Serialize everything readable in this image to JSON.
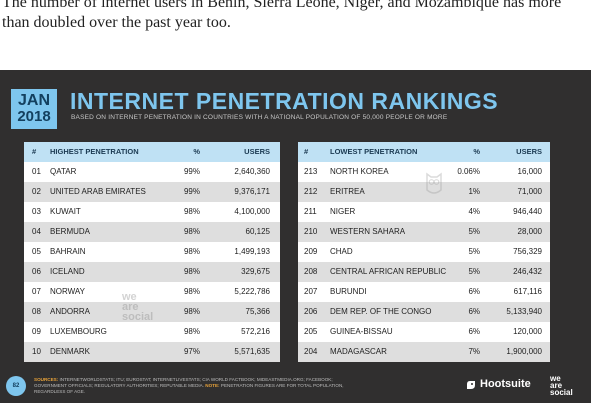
{
  "intro_text": "The number of internet users in Benin, Sierra Leone, Niger, and Mozambique has more than doubled over the past year too.",
  "slide": {
    "month": "JAN",
    "year": "2018",
    "title": "INTERNET PENETRATION RANKINGS",
    "subtitle": "BASED ON INTERNET PENETRATION IN COUNTRIES WITH A NATIONAL POPULATION OF 50,000 PEOPLE OR MORE",
    "page_number": "82",
    "watermark_left": [
      "we",
      "are",
      "social"
    ],
    "sources_label": "SOURCES:",
    "sources_text": "INTERNETWORLDSTATS; ITU; EUROSTAT; INTERNETLIVESTATS; CIA WORLD FACTBOOK; MIDEASTMEDIA.ORG; FACEBOOK; GOVERNMENT OFFICIALS; REGULATORY AUTHORITIES; REPUTABLE MEDIA.",
    "note_label": "NOTE:",
    "note_text": "PENETRATION FIGURES ARE FOR TOTAL POPULATION, REGARDLESS OF AGE.",
    "brand": "Hootsuite",
    "was": [
      "we",
      "are",
      "social"
    ],
    "colors": {
      "accent": "#7ec6ee",
      "background": "#302f2f",
      "header": "#bfe1f4"
    }
  },
  "left_table": {
    "headers": {
      "num": "#",
      "name": "HIGHEST PENETRATION",
      "pct": "%",
      "users": "USERS"
    },
    "rows": [
      {
        "num": "01",
        "name": "QATAR",
        "pct": "99%",
        "users": "2,640,360"
      },
      {
        "num": "02",
        "name": "UNITED ARAB EMIRATES",
        "pct": "99%",
        "users": "9,376,171"
      },
      {
        "num": "03",
        "name": "KUWAIT",
        "pct": "98%",
        "users": "4,100,000"
      },
      {
        "num": "04",
        "name": "BERMUDA",
        "pct": "98%",
        "users": "60,125"
      },
      {
        "num": "05",
        "name": "BAHRAIN",
        "pct": "98%",
        "users": "1,499,193"
      },
      {
        "num": "06",
        "name": "ICELAND",
        "pct": "98%",
        "users": "329,675"
      },
      {
        "num": "07",
        "name": "NORWAY",
        "pct": "98%",
        "users": "5,222,786"
      },
      {
        "num": "08",
        "name": "ANDORRA",
        "pct": "98%",
        "users": "75,366"
      },
      {
        "num": "09",
        "name": "LUXEMBOURG",
        "pct": "98%",
        "users": "572,216"
      },
      {
        "num": "10",
        "name": "DENMARK",
        "pct": "97%",
        "users": "5,571,635"
      }
    ]
  },
  "right_table": {
    "headers": {
      "num": "#",
      "name": "LOWEST PENETRATION",
      "pct": "%",
      "users": "USERS"
    },
    "rows": [
      {
        "num": "213",
        "name": "NORTH KOREA",
        "pct": "0.06%",
        "users": "16,000"
      },
      {
        "num": "212",
        "name": "ERITREA",
        "pct": "1%",
        "users": "71,000"
      },
      {
        "num": "211",
        "name": "NIGER",
        "pct": "4%",
        "users": "946,440"
      },
      {
        "num": "210",
        "name": "WESTERN SAHARA",
        "pct": "5%",
        "users": "28,000"
      },
      {
        "num": "209",
        "name": "CHAD",
        "pct": "5%",
        "users": "756,329"
      },
      {
        "num": "208",
        "name": "CENTRAL AFRICAN REPUBLIC",
        "pct": "5%",
        "users": "246,432"
      },
      {
        "num": "207",
        "name": "BURUNDI",
        "pct": "6%",
        "users": "617,116"
      },
      {
        "num": "206",
        "name": "DEM REP. OF THE CONGO",
        "pct": "6%",
        "users": "5,133,940"
      },
      {
        "num": "205",
        "name": "GUINEA-BISSAU",
        "pct": "6%",
        "users": "120,000"
      },
      {
        "num": "204",
        "name": "MADAGASCAR",
        "pct": "7%",
        "users": "1,900,000"
      }
    ]
  }
}
